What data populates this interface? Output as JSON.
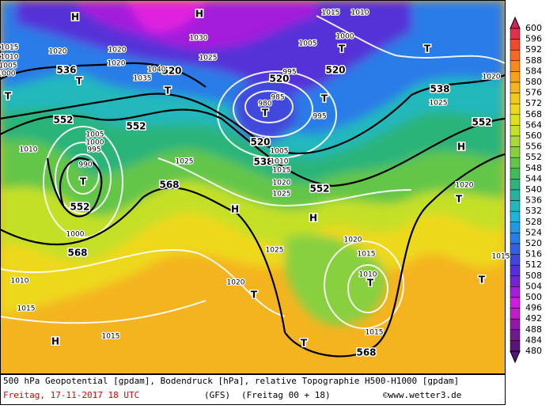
{
  "colorbar": {
    "labels": [
      600,
      596,
      592,
      588,
      584,
      580,
      576,
      572,
      568,
      564,
      560,
      556,
      552,
      548,
      544,
      540,
      536,
      532,
      528,
      524,
      520,
      516,
      512,
      508,
      504,
      500,
      496,
      492,
      488,
      484,
      480
    ],
    "colors": [
      "#c8285a",
      "#e0304a",
      "#f04a2c",
      "#f46a24",
      "#f68a20",
      "#f6a020",
      "#f4b420",
      "#f2c81e",
      "#eed81c",
      "#dce020",
      "#c4e028",
      "#a8d83a",
      "#88d040",
      "#64c648",
      "#42bc58",
      "#2cb47a",
      "#24b49c",
      "#22b8bc",
      "#20b4dc",
      "#2098e8",
      "#2a7ce8",
      "#3460e4",
      "#4048dc",
      "#5430d8",
      "#7424d8",
      "#a41edc",
      "#d01ee0",
      "#c01cc8",
      "#9018a8",
      "#701890",
      "#581478"
    ]
  },
  "map": {
    "labels": [
      "H",
      "H",
      "T",
      "T",
      "T",
      "T",
      "T",
      "T",
      "T",
      "T",
      "H",
      "T",
      "H",
      "H",
      "T",
      "T",
      "T",
      "H",
      "T",
      "536",
      "552",
      "552",
      "520",
      "520",
      "520",
      "538",
      "552",
      "520",
      "538",
      "552",
      "568",
      "552",
      "568",
      "568",
      "1020",
      "1015",
      "1010",
      "1000",
      "1005",
      "1020",
      "1020",
      "1015",
      "1010",
      "1005",
      "1000",
      "1025",
      "1030",
      "1035",
      "1040",
      "1025",
      "1020",
      "995",
      "985",
      "980",
      "995",
      "1005",
      "1010",
      "1015",
      "1020",
      "1025",
      "1005",
      "1000",
      "995",
      "990",
      "1010",
      "1025",
      "1020",
      "1020",
      "1015",
      "1010",
      "1015",
      "1025",
      "1020",
      "1010",
      "1015",
      "1015",
      "1015",
      "1000"
    ]
  },
  "footer": {
    "line1": "500 hPa Geopotential [gpdam], Bodendruck [hPa], relative Topographie H500-H1000 [gpdam]",
    "date": "Freitag, 17-11-2017  18 UTC",
    "model": "(GFS)",
    "run": "(Freitag 00 + 18)",
    "credit": "©www.wetter3.de"
  }
}
